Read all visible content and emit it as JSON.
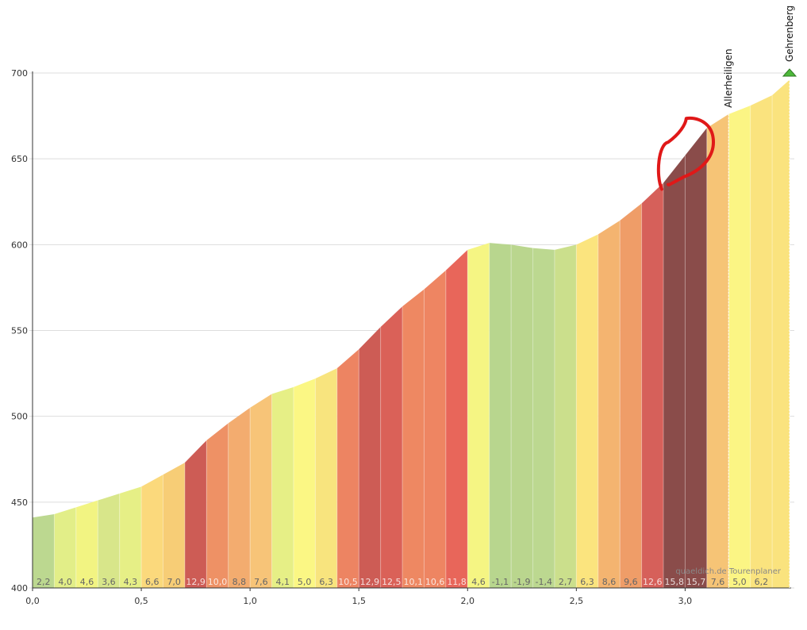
{
  "chart_data": {
    "type": "area",
    "x_ticks": [
      "0,0",
      "0,5",
      "1,0",
      "1,5",
      "2,0",
      "2,5",
      "3,0"
    ],
    "y_ticks": [
      "400",
      "450",
      "500",
      "550",
      "600",
      "650",
      "700"
    ],
    "xlim": [
      0,
      3.48
    ],
    "ylim": [
      400,
      700
    ],
    "grid": "horizontal",
    "segment_width_km": 0.1,
    "elevation": [
      441,
      443,
      447,
      451,
      455,
      459,
      466,
      473,
      486,
      496,
      505,
      513,
      517,
      522,
      528,
      539,
      552,
      564,
      574,
      585,
      597,
      601,
      600,
      598,
      597,
      600,
      606,
      614,
      624,
      636,
      652,
      668,
      676,
      681,
      687,
      696
    ],
    "gradients": [
      "2,2",
      "4,0",
      "4,6",
      "3,6",
      "4,3",
      "6,6",
      "7,0",
      "12,9",
      "10,0",
      "8,8",
      "7,6",
      "4,1",
      "5,0",
      "6,3",
      "10,5",
      "12,9",
      "12,5",
      "10,1",
      "10,6",
      "11,8",
      "4,6",
      "-1,1",
      "-1,9",
      "-1,4",
      "2,7",
      "6,3",
      "8,6",
      "9,6",
      "12,6",
      "15,8",
      "15,7",
      "7,6",
      "5,0",
      "6,2",
      ""
    ],
    "segment_colors": [
      "#bcd890",
      "#e2ee88",
      "#f2f482",
      "#d8e68a",
      "#e6ef86",
      "#fbd97c",
      "#f7cd76",
      "#cd5c55",
      "#ee9165",
      "#f3ac6f",
      "#f7c478",
      "#e6ef86",
      "#fbf784",
      "#f8e47e",
      "#ed8462",
      "#cd5c55",
      "#da6158",
      "#ee8862",
      "#ee8562",
      "#e8665a",
      "#f5f583",
      "#b8d68e",
      "#bad68e",
      "#bcd890",
      "#cbdf8c",
      "#fbe47e",
      "#f4b470",
      "#ef9d68",
      "#d6605a",
      "#8a4c4a",
      "#8a4c4a",
      "#f6c476",
      "#fbf584",
      "#fae37e",
      "#fae37e"
    ],
    "waypoints": [
      {
        "name": "Allerheiligen",
        "km": 3.2
      },
      {
        "name": "Gehrenberg",
        "km": 3.48
      }
    ],
    "annotation": {
      "type": "red-circle",
      "km_from": 2.9,
      "km_to": 3.1
    },
    "watermark": "quaeldich.de Tourenplaner"
  },
  "colors": {
    "grid": "#dddddd",
    "axis": "#333333",
    "annotation": "#e01818",
    "summit_flag": "#4db83a",
    "zero_gradient_text": "#666666"
  },
  "icons": {
    "summit": "summit-flag-icon"
  }
}
